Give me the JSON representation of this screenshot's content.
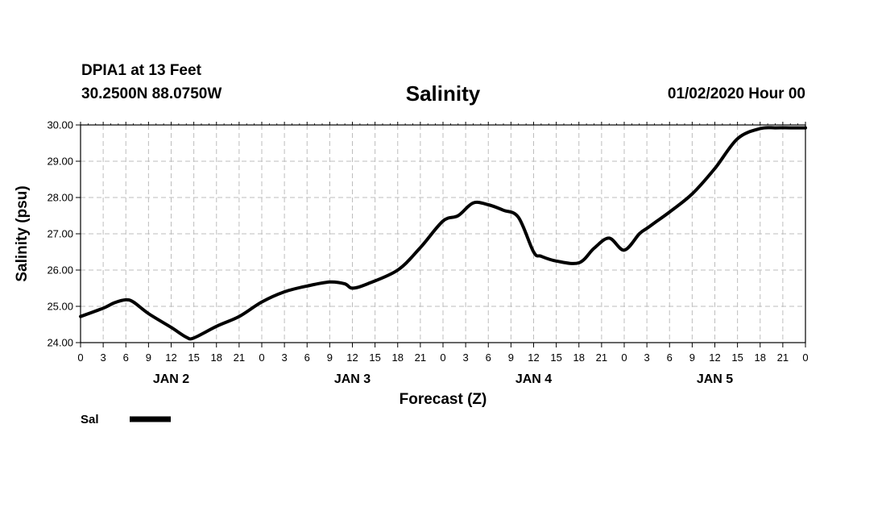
{
  "header": {
    "station": "DPIA1 at 13 Feet",
    "coords": "30.2500N 88.0750W",
    "title": "Salinity",
    "datetime": "01/02/2020 Hour 00"
  },
  "chart_data": {
    "type": "line",
    "title": "Salinity",
    "xlabel": "Forecast (Z)",
    "ylabel": "Salinity (psu)",
    "ylim": [
      24.0,
      30.0
    ],
    "yticks": [
      "24.00",
      "25.00",
      "26.00",
      "27.00",
      "28.00",
      "29.00",
      "30.00"
    ],
    "xlim": [
      0,
      96
    ],
    "xtick_labels": [
      "0",
      "3",
      "6",
      "9",
      "12",
      "15",
      "18",
      "21",
      "0",
      "3",
      "6",
      "9",
      "12",
      "15",
      "18",
      "21",
      "0",
      "3",
      "6",
      "9",
      "12",
      "15",
      "18",
      "21",
      "0",
      "3",
      "6",
      "9",
      "12",
      "15",
      "18",
      "21",
      "0"
    ],
    "day_labels": [
      {
        "label": "JAN 2",
        "center_hour": 12
      },
      {
        "label": "JAN 3",
        "center_hour": 36
      },
      {
        "label": "JAN 4",
        "center_hour": 60
      },
      {
        "label": "JAN 5",
        "center_hour": 84
      }
    ],
    "grid": true,
    "legend_position": "bottom-left",
    "series": [
      {
        "name": "Sal",
        "color": "#000000",
        "x": [
          0,
          3,
          4.5,
          6,
          7,
          9,
          12,
          14,
          15,
          18,
          21,
          24,
          27,
          30,
          33,
          35,
          36,
          38,
          42,
          45,
          48,
          50,
          52,
          54,
          56,
          58,
          60,
          61,
          63,
          66,
          68,
          70,
          72,
          74,
          75,
          76,
          78,
          81,
          84,
          87,
          90,
          92,
          94,
          96
        ],
        "values": [
          24.72,
          24.95,
          25.1,
          25.18,
          25.12,
          24.8,
          24.42,
          24.15,
          24.13,
          24.45,
          24.72,
          25.12,
          25.4,
          25.56,
          25.67,
          25.62,
          25.5,
          25.62,
          26.0,
          26.62,
          27.35,
          27.5,
          27.85,
          27.8,
          27.65,
          27.45,
          26.5,
          26.38,
          26.25,
          26.2,
          26.6,
          26.88,
          26.55,
          27.0,
          27.15,
          27.3,
          27.6,
          28.1,
          28.8,
          29.62,
          29.9,
          29.92,
          29.92,
          29.92
        ]
      }
    ]
  }
}
